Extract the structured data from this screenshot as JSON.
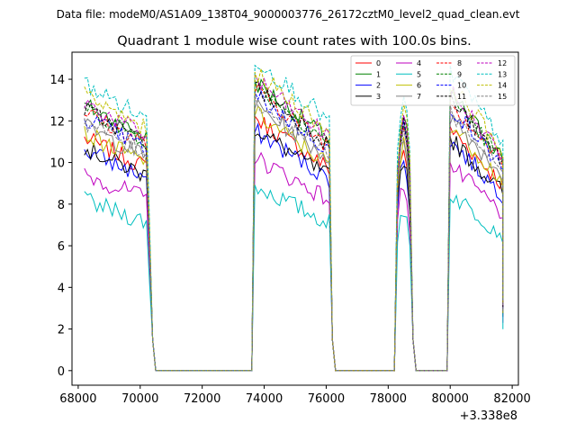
{
  "chart_data": {
    "type": "line",
    "suptitle": "Data file: modeM0/AS1A09_138T04_9000003776_26172cztM0_level2_quad_clean.evt",
    "title": "Quadrant 1 module wise count rates with 100.0s bins.",
    "xlabel": "",
    "ylabel": "",
    "x_offset_label": "+3.338e8",
    "xlim": [
      67800,
      82200
    ],
    "ylim": [
      -0.7,
      15.3
    ],
    "xticks": [
      68000,
      70000,
      72000,
      74000,
      76000,
      78000,
      80000,
      82000
    ],
    "yticks": [
      0,
      2,
      4,
      6,
      8,
      10,
      12,
      14
    ],
    "legend_position": "top-right",
    "legend_columns": 4,
    "bin_seconds": 100,
    "segments": [
      {
        "start": 68200,
        "end": 70300
      },
      {
        "start": 73700,
        "end": 76100
      },
      {
        "start": 78300,
        "end": 78700
      },
      {
        "start": 80000,
        "end": 81700
      }
    ],
    "series": [
      {
        "name": "0",
        "color": "#ff0000",
        "dash": "solid",
        "level": 9.7
      },
      {
        "name": "1",
        "color": "#008000",
        "dash": "solid",
        "level": 11.1
      },
      {
        "name": "2",
        "color": "#0000ff",
        "dash": "solid",
        "level": 9.2
      },
      {
        "name": "3",
        "color": "#000000",
        "dash": "solid",
        "level": 9.3
      },
      {
        "name": "4",
        "color": "#bf00bf",
        "dash": "solid",
        "level": 8.2
      },
      {
        "name": "5",
        "color": "#00bfbf",
        "dash": "solid",
        "level": 7.1
      },
      {
        "name": "6",
        "color": "#bfbf00",
        "dash": "solid",
        "level": 9.9
      },
      {
        "name": "7",
        "color": "#808080",
        "dash": "solid",
        "level": 10.2
      },
      {
        "name": "8",
        "color": "#ff0000",
        "dash": "dashed",
        "level": 10.8
      },
      {
        "name": "9",
        "color": "#008000",
        "dash": "dashed",
        "level": 11.0
      },
      {
        "name": "10",
        "color": "#0000ff",
        "dash": "dashed",
        "level": 10.6
      },
      {
        "name": "11",
        "color": "#000000",
        "dash": "dashed",
        "level": 10.9
      },
      {
        "name": "12",
        "color": "#bf00bf",
        "dash": "dashed",
        "level": 11.2
      },
      {
        "name": "13",
        "color": "#00bfbf",
        "dash": "dashed",
        "level": 12.0
      },
      {
        "name": "14",
        "color": "#bfbf00",
        "dash": "dashed",
        "level": 11.5
      },
      {
        "name": "15",
        "color": "#808080",
        "dash": "dashed",
        "level": 10.4
      }
    ]
  }
}
